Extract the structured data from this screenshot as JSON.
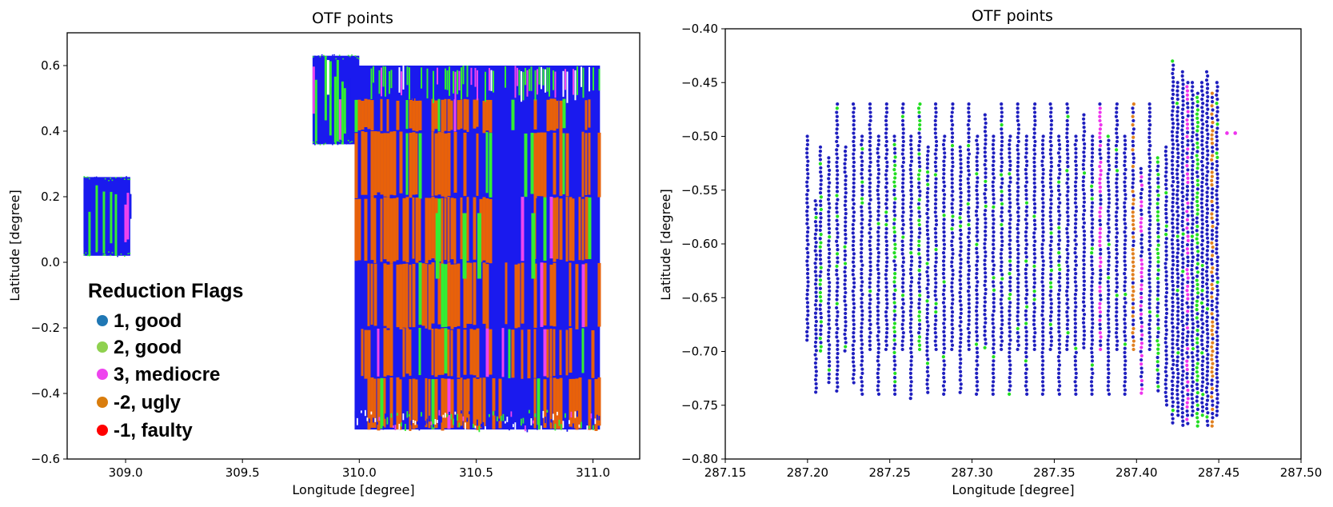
{
  "chart_data": [
    {
      "type": "scatter",
      "title": "OTF points",
      "xlabel": "Longitude [degree]",
      "ylabel": "Latitude [degree]",
      "xlim": [
        308.75,
        311.2
      ],
      "ylim": [
        -0.6,
        0.7
      ],
      "xticks": [
        "309.0",
        "309.5",
        "310.0",
        "310.5",
        "311.0"
      ],
      "yticks": [
        "−0.6",
        "−0.4",
        "−0.2",
        "0.0",
        "0.2",
        "0.4",
        "0.6"
      ],
      "xtick_values": [
        309.0,
        309.5,
        310.0,
        310.5,
        311.0
      ],
      "ytick_values": [
        -0.6,
        -0.4,
        -0.2,
        0.0,
        0.2,
        0.4,
        0.6
      ],
      "grid": false,
      "legend": {
        "title": "Reduction Flags",
        "placement": "lower-left",
        "entries": [
          {
            "label": "1, good",
            "color": "#1f77b4"
          },
          {
            "label": "2, good",
            "color": "#8fd14f"
          },
          {
            "label": "3, mediocre",
            "color": "#ee44ee"
          },
          {
            "label": "-2, ugly",
            "color": "#d97d0d"
          },
          {
            "label": "-1, faulty",
            "color": "#ff0000"
          }
        ]
      },
      "regions": [
        {
          "name": "",
          "x_range": [
            308.82,
            309.02
          ],
          "y_range": [
            0.02,
            0.26
          ],
          "flags": {
            "1": "mixed",
            "2": "mixed",
            "3": "few"
          }
        },
        {
          "name": "",
          "x_range": [
            309.8,
            310.0
          ],
          "y_range": [
            0.36,
            0.63
          ],
          "flags": {
            "1": "mixed",
            "2": "mixed"
          }
        },
        {
          "name": "",
          "x_range": [
            309.98,
            311.03
          ],
          "y_range": [
            -0.51,
            0.6
          ],
          "flags": {
            "1": "mixed",
            "2": "few",
            "3": "few",
            "-2": "mixed"
          }
        }
      ]
    },
    {
      "type": "scatter",
      "title": "OTF points",
      "xlabel": "Longitude [degree]",
      "ylabel": "Latitude [degree]",
      "xlim": [
        287.15,
        287.5
      ],
      "ylim": [
        -0.8,
        -0.4
      ],
      "xticks": [
        "287.15",
        "287.20",
        "287.25",
        "287.30",
        "287.35",
        "287.40",
        "287.45",
        "287.50"
      ],
      "yticks": [
        "−0.80",
        "−0.75",
        "−0.70",
        "−0.65",
        "−0.60",
        "−0.55",
        "−0.50",
        "−0.45",
        "−0.40"
      ],
      "xtick_values": [
        287.15,
        287.2,
        287.25,
        287.3,
        287.35,
        287.4,
        287.45,
        287.5
      ],
      "ytick_values": [
        -0.8,
        -0.75,
        -0.7,
        -0.65,
        -0.6,
        -0.55,
        -0.5,
        -0.45,
        -0.4
      ],
      "grid": false,
      "colors": {
        "1": "#1f1fbf",
        "2": "#22dd22",
        "3": "#ee33ee",
        "-2": "#e08020"
      },
      "scan_lines": [
        {
          "x": 287.2,
          "y_range": [
            -0.69,
            -0.5
          ],
          "flag": "1"
        },
        {
          "x": 287.205,
          "y_range": [
            -0.74,
            -0.56
          ],
          "flag": "1"
        },
        {
          "x": 287.208,
          "y_range": [
            -0.7,
            -0.51
          ],
          "flag": "2"
        },
        {
          "x": 287.213,
          "y_range": [
            -0.73,
            -0.52
          ],
          "flag": "1"
        },
        {
          "x": 287.218,
          "y_range": [
            -0.74,
            -0.47
          ],
          "flag": "1"
        },
        {
          "x": 287.223,
          "y_range": [
            -0.7,
            -0.51
          ],
          "flag": "1"
        },
        {
          "x": 287.228,
          "y_range": [
            -0.73,
            -0.47
          ],
          "flag": "1"
        },
        {
          "x": 287.233,
          "y_range": [
            -0.74,
            -0.5
          ],
          "flag": "1"
        },
        {
          "x": 287.238,
          "y_range": [
            -0.7,
            -0.47
          ],
          "flag": "1"
        },
        {
          "x": 287.243,
          "y_range": [
            -0.74,
            -0.5
          ],
          "flag": "1"
        },
        {
          "x": 287.248,
          "y_range": [
            -0.7,
            -0.47
          ],
          "flag": "1"
        },
        {
          "x": 287.253,
          "y_range": [
            -0.74,
            -0.5
          ],
          "flag": "2"
        },
        {
          "x": 287.258,
          "y_range": [
            -0.7,
            -0.47
          ],
          "flag": "1"
        },
        {
          "x": 287.263,
          "y_range": [
            -0.745,
            -0.5
          ],
          "flag": "1"
        },
        {
          "x": 287.268,
          "y_range": [
            -0.7,
            -0.47
          ],
          "flag": "2"
        },
        {
          "x": 287.273,
          "y_range": [
            -0.74,
            -0.51
          ],
          "flag": "1"
        },
        {
          "x": 287.278,
          "y_range": [
            -0.7,
            -0.47
          ],
          "flag": "1"
        },
        {
          "x": 287.283,
          "y_range": [
            -0.74,
            -0.5
          ],
          "flag": "1"
        },
        {
          "x": 287.288,
          "y_range": [
            -0.7,
            -0.47
          ],
          "flag": "1"
        },
        {
          "x": 287.293,
          "y_range": [
            -0.74,
            -0.51
          ],
          "flag": "1"
        },
        {
          "x": 287.298,
          "y_range": [
            -0.7,
            -0.47
          ],
          "flag": "1"
        },
        {
          "x": 287.303,
          "y_range": [
            -0.74,
            -0.5
          ],
          "flag": "1"
        },
        {
          "x": 287.308,
          "y_range": [
            -0.7,
            -0.48
          ],
          "flag": "1"
        },
        {
          "x": 287.313,
          "y_range": [
            -0.74,
            -0.5
          ],
          "flag": "1"
        },
        {
          "x": 287.318,
          "y_range": [
            -0.7,
            -0.47
          ],
          "flag": "1"
        },
        {
          "x": 287.323,
          "y_range": [
            -0.74,
            -0.5
          ],
          "flag": "1"
        },
        {
          "x": 287.328,
          "y_range": [
            -0.7,
            -0.47
          ],
          "flag": "1"
        },
        {
          "x": 287.333,
          "y_range": [
            -0.74,
            -0.5
          ],
          "flag": "1"
        },
        {
          "x": 287.338,
          "y_range": [
            -0.7,
            -0.47
          ],
          "flag": "1"
        },
        {
          "x": 287.343,
          "y_range": [
            -0.74,
            -0.5
          ],
          "flag": "1"
        },
        {
          "x": 287.348,
          "y_range": [
            -0.7,
            -0.47
          ],
          "flag": "1"
        },
        {
          "x": 287.353,
          "y_range": [
            -0.74,
            -0.5
          ],
          "flag": "1"
        },
        {
          "x": 287.358,
          "y_range": [
            -0.7,
            -0.47
          ],
          "flag": "1"
        },
        {
          "x": 287.363,
          "y_range": [
            -0.74,
            -0.5
          ],
          "flag": "1"
        },
        {
          "x": 287.368,
          "y_range": [
            -0.7,
            -0.48
          ],
          "flag": "1"
        },
        {
          "x": 287.373,
          "y_range": [
            -0.74,
            -0.5
          ],
          "flag": "1"
        },
        {
          "x": 287.378,
          "y_range": [
            -0.7,
            -0.47
          ],
          "flag": "3"
        },
        {
          "x": 287.383,
          "y_range": [
            -0.74,
            -0.5
          ],
          "flag": "1"
        },
        {
          "x": 287.388,
          "y_range": [
            -0.7,
            -0.47
          ],
          "flag": "1"
        },
        {
          "x": 287.393,
          "y_range": [
            -0.74,
            -0.5
          ],
          "flag": "1"
        },
        {
          "x": 287.398,
          "y_range": [
            -0.7,
            -0.47
          ],
          "flag": "-2"
        },
        {
          "x": 287.403,
          "y_range": [
            -0.74,
            -0.53
          ],
          "flag": "3"
        },
        {
          "x": 287.408,
          "y_range": [
            -0.7,
            -0.47
          ],
          "flag": "1"
        },
        {
          "x": 287.413,
          "y_range": [
            -0.74,
            -0.52
          ],
          "flag": "2"
        },
        {
          "x": 287.418,
          "y_range": [
            -0.75,
            -0.51
          ],
          "flag": "1"
        },
        {
          "x": 287.422,
          "y_range": [
            -0.77,
            -0.43
          ],
          "flag": "1"
        },
        {
          "x": 287.425,
          "y_range": [
            -0.76,
            -0.45
          ],
          "flag": "1"
        },
        {
          "x": 287.428,
          "y_range": [
            -0.77,
            -0.44
          ],
          "flag": "1"
        },
        {
          "x": 287.431,
          "y_range": [
            -0.77,
            -0.45
          ],
          "flag": "3"
        },
        {
          "x": 287.434,
          "y_range": [
            -0.76,
            -0.45
          ],
          "flag": "1"
        },
        {
          "x": 287.437,
          "y_range": [
            -0.77,
            -0.46
          ],
          "flag": "2"
        },
        {
          "x": 287.44,
          "y_range": [
            -0.76,
            -0.45
          ],
          "flag": "1"
        },
        {
          "x": 287.443,
          "y_range": [
            -0.77,
            -0.44
          ],
          "flag": "1"
        },
        {
          "x": 287.446,
          "y_range": [
            -0.77,
            -0.46
          ],
          "flag": "-2"
        },
        {
          "x": 287.449,
          "y_range": [
            -0.76,
            -0.45
          ],
          "flag": "1"
        }
      ],
      "outliers": [
        {
          "x": 287.455,
          "y": -0.497,
          "flag": "3"
        },
        {
          "x": 287.46,
          "y": -0.497,
          "flag": "3"
        }
      ]
    }
  ]
}
